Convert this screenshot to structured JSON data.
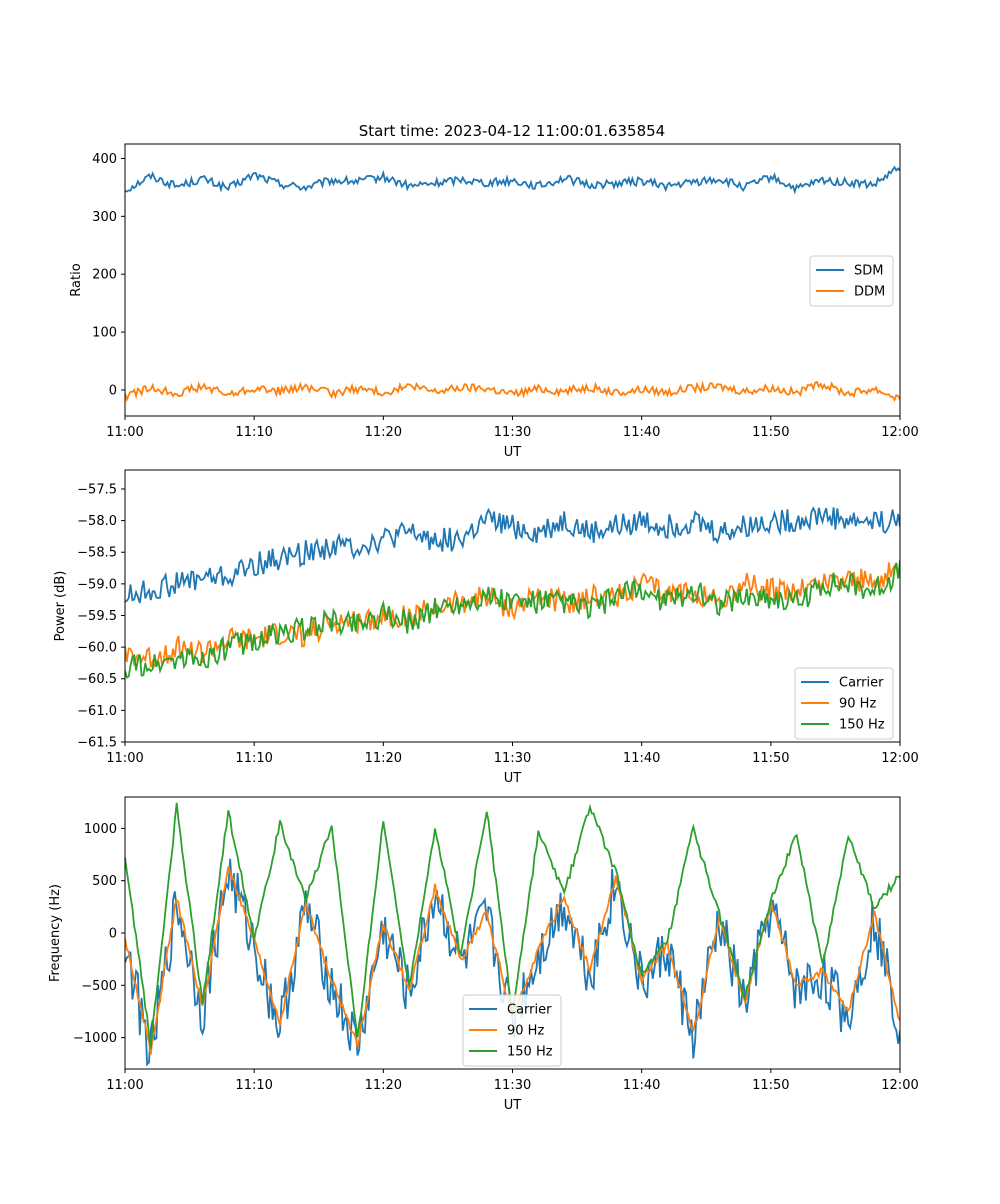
{
  "figure_title": "Start time: 2023-04-12 11:00:01.635854",
  "colors": {
    "blue": "#1f77b4",
    "orange": "#ff7f0e",
    "green": "#2ca02c"
  },
  "chart_data": [
    {
      "type": "line",
      "title": "Start time: 2023-04-12 11:00:01.635854",
      "xlabel": "UT",
      "ylabel": "Ratio",
      "xlim": [
        "11:00",
        "12:00"
      ],
      "ylim": [
        -45,
        425
      ],
      "xticks": [
        "11:00",
        "11:10",
        "11:20",
        "11:30",
        "11:40",
        "11:50",
        "12:00"
      ],
      "yticks": [
        "400",
        "300",
        "200",
        "100",
        "0"
      ],
      "legend_position": "center-right",
      "grid": false,
      "series": [
        {
          "name": "SDM",
          "color": "#1f77b4",
          "x": [
            "11:00",
            "11:02",
            "11:04",
            "11:06",
            "11:08",
            "11:10",
            "11:12",
            "11:14",
            "11:16",
            "11:18",
            "11:20",
            "11:22",
            "11:24",
            "11:26",
            "11:28",
            "11:30",
            "11:32",
            "11:34",
            "11:36",
            "11:38",
            "11:40",
            "11:42",
            "11:44",
            "11:46",
            "11:48",
            "11:50",
            "11:52",
            "11:54",
            "11:56",
            "11:58",
            "12:00"
          ],
          "values": [
            345,
            370,
            352,
            365,
            348,
            372,
            356,
            350,
            362,
            360,
            368,
            352,
            357,
            364,
            358,
            362,
            352,
            366,
            354,
            357,
            361,
            352,
            359,
            364,
            350,
            368,
            347,
            362,
            358,
            354,
            385
          ]
        },
        {
          "name": "DDM",
          "color": "#ff7f0e",
          "x": [
            "11:00",
            "11:02",
            "11:04",
            "11:06",
            "11:08",
            "11:10",
            "11:12",
            "11:14",
            "11:16",
            "11:18",
            "11:20",
            "11:22",
            "11:24",
            "11:26",
            "11:28",
            "11:30",
            "11:32",
            "11:34",
            "11:36",
            "11:38",
            "11:40",
            "11:42",
            "11:44",
            "11:46",
            "11:48",
            "11:50",
            "11:52",
            "11:54",
            "11:56",
            "11:58",
            "12:00"
          ],
          "values": [
            -12,
            4,
            -5,
            6,
            -8,
            3,
            -2,
            5,
            -6,
            2,
            -4,
            6,
            -3,
            4,
            3,
            -7,
            2,
            -2,
            5,
            -6,
            1,
            -4,
            3,
            6,
            -2,
            4,
            -5,
            10,
            -6,
            2,
            -15
          ]
        }
      ]
    },
    {
      "type": "line",
      "title": "",
      "xlabel": "UT",
      "ylabel": "Power (dB)",
      "xlim": [
        "11:00",
        "12:00"
      ],
      "ylim": [
        -61.5,
        -57.2
      ],
      "xticks": [
        "11:00",
        "11:10",
        "11:20",
        "11:30",
        "11:40",
        "11:50",
        "12:00"
      ],
      "yticks": [
        "−57.5",
        "−58.0",
        "−58.5",
        "−59.0",
        "−59.5",
        "−60.0",
        "−60.5",
        "−61.0",
        "−61.5"
      ],
      "legend_position": "lower-right",
      "grid": false,
      "series": [
        {
          "name": "Carrier",
          "color": "#1f77b4",
          "x": [
            "11:00",
            "11:02",
            "11:04",
            "11:06",
            "11:08",
            "11:10",
            "11:12",
            "11:14",
            "11:16",
            "11:18",
            "11:20",
            "11:22",
            "11:24",
            "11:26",
            "11:28",
            "11:30",
            "11:32",
            "11:34",
            "11:36",
            "11:38",
            "11:40",
            "11:42",
            "11:44",
            "11:46",
            "11:48",
            "11:50",
            "11:52",
            "11:54",
            "11:56",
            "11:58",
            "12:00"
          ],
          "values": [
            -59.2,
            -59.1,
            -59.0,
            -58.9,
            -58.9,
            -58.7,
            -58.6,
            -58.5,
            -58.4,
            -58.4,
            -58.3,
            -58.2,
            -58.3,
            -58.3,
            -58.0,
            -58.1,
            -58.2,
            -58.0,
            -58.2,
            -58.1,
            -58.0,
            -58.1,
            -58.0,
            -58.2,
            -58.1,
            -58.0,
            -58.0,
            -57.9,
            -58.0,
            -58.0,
            -58.0
          ]
        },
        {
          "name": "90 Hz",
          "color": "#ff7f0e",
          "x": [
            "11:00",
            "11:02",
            "11:04",
            "11:06",
            "11:08",
            "11:10",
            "11:12",
            "11:14",
            "11:16",
            "11:18",
            "11:20",
            "11:22",
            "11:24",
            "11:26",
            "11:28",
            "11:30",
            "11:32",
            "11:34",
            "11:36",
            "11:38",
            "11:40",
            "11:42",
            "11:44",
            "11:46",
            "11:48",
            "11:50",
            "11:52",
            "11:54",
            "11:56",
            "11:58",
            "12:00"
          ],
          "values": [
            -60.1,
            -60.2,
            -60.0,
            -60.1,
            -59.9,
            -59.9,
            -59.8,
            -59.8,
            -59.6,
            -59.6,
            -59.5,
            -59.5,
            -59.4,
            -59.3,
            -59.2,
            -59.4,
            -59.2,
            -59.3,
            -59.2,
            -59.2,
            -59.0,
            -59.2,
            -59.1,
            -59.3,
            -59.0,
            -59.1,
            -59.1,
            -59.0,
            -58.9,
            -59.0,
            -58.7
          ]
        },
        {
          "name": "150 Hz",
          "color": "#2ca02c",
          "x": [
            "11:00",
            "11:02",
            "11:04",
            "11:06",
            "11:08",
            "11:10",
            "11:12",
            "11:14",
            "11:16",
            "11:18",
            "11:20",
            "11:22",
            "11:24",
            "11:26",
            "11:28",
            "11:30",
            "11:32",
            "11:34",
            "11:36",
            "11:38",
            "11:40",
            "11:42",
            "11:44",
            "11:46",
            "11:48",
            "11:50",
            "11:52",
            "11:54",
            "11:56",
            "11:58",
            "12:00"
          ],
          "values": [
            -60.3,
            -60.3,
            -60.2,
            -60.2,
            -60.0,
            -59.9,
            -59.8,
            -59.7,
            -59.6,
            -59.6,
            -59.5,
            -59.6,
            -59.4,
            -59.3,
            -59.2,
            -59.3,
            -59.3,
            -59.3,
            -59.4,
            -59.2,
            -59.1,
            -59.3,
            -59.1,
            -59.3,
            -59.2,
            -59.2,
            -59.3,
            -59.0,
            -59.0,
            -59.1,
            -58.8
          ]
        }
      ]
    },
    {
      "type": "line",
      "title": "",
      "xlabel": "UT",
      "ylabel": "Frequency (Hz)",
      "xlim": [
        "11:00",
        "12:00"
      ],
      "ylim": [
        -1300,
        1300
      ],
      "xticks": [
        "11:00",
        "11:10",
        "11:20",
        "11:30",
        "11:40",
        "11:50",
        "12:00"
      ],
      "yticks": [
        "1000",
        "500",
        "0",
        "−500",
        "−1000"
      ],
      "legend_position": "lower-center",
      "grid": false,
      "series": [
        {
          "name": "Carrier",
          "color": "#1f77b4",
          "x": [
            "11:00",
            "11:02",
            "11:04",
            "11:06",
            "11:08",
            "11:10",
            "11:12",
            "11:14",
            "11:16",
            "11:18",
            "11:20",
            "11:22",
            "11:24",
            "11:26",
            "11:28",
            "11:30",
            "11:32",
            "11:34",
            "11:36",
            "11:38",
            "11:40",
            "11:42",
            "11:44",
            "11:46",
            "11:48",
            "11:50",
            "11:52",
            "11:54",
            "11:56",
            "11:58",
            "12:00"
          ],
          "values": [
            -100,
            -1180,
            300,
            -760,
            600,
            -120,
            -900,
            250,
            -500,
            -1100,
            50,
            -600,
            400,
            -300,
            150,
            -850,
            -200,
            300,
            -400,
            500,
            -500,
            -150,
            -1000,
            100,
            -700,
            250,
            -550,
            -400,
            -800,
            150,
            -900
          ]
        },
        {
          "name": "90 Hz",
          "color": "#ff7f0e",
          "x": [
            "11:00",
            "11:02",
            "11:04",
            "11:06",
            "11:08",
            "11:10",
            "11:12",
            "11:14",
            "11:16",
            "11:18",
            "11:20",
            "11:22",
            "11:24",
            "11:26",
            "11:28",
            "11:30",
            "11:32",
            "11:34",
            "11:36",
            "11:38",
            "11:40",
            "11:42",
            "11:44",
            "11:46",
            "11:48",
            "11:50",
            "11:52",
            "11:54",
            "11:56",
            "11:58",
            "12:00"
          ],
          "values": [
            -60,
            -1130,
            340,
            -720,
            640,
            -80,
            -860,
            290,
            -460,
            -1060,
            90,
            -560,
            440,
            -260,
            190,
            -810,
            -160,
            340,
            -360,
            540,
            -460,
            -110,
            -960,
            140,
            -660,
            290,
            -510,
            -360,
            -760,
            190,
            -860
          ]
        },
        {
          "name": "150 Hz",
          "color": "#2ca02c",
          "x": [
            "11:00",
            "11:02",
            "11:04",
            "11:06",
            "11:08",
            "11:10",
            "11:12",
            "11:14",
            "11:16",
            "11:18",
            "11:20",
            "11:22",
            "11:24",
            "11:26",
            "11:28",
            "11:30",
            "11:32",
            "11:34",
            "11:36",
            "11:38",
            "11:40",
            "11:42",
            "11:44",
            "11:46",
            "11:48",
            "11:50",
            "11:52",
            "11:54",
            "11:56",
            "11:58",
            "12:00"
          ],
          "values": [
            750,
            -1080,
            1210,
            -680,
            1160,
            -40,
            1040,
            330,
            1010,
            -1020,
            1060,
            -520,
            1000,
            -220,
            1190,
            -770,
            960,
            380,
            1210,
            580,
            -420,
            -70,
            1000,
            180,
            -620,
            330,
            940,
            -320,
            940,
            230,
            560
          ]
        }
      ]
    }
  ]
}
